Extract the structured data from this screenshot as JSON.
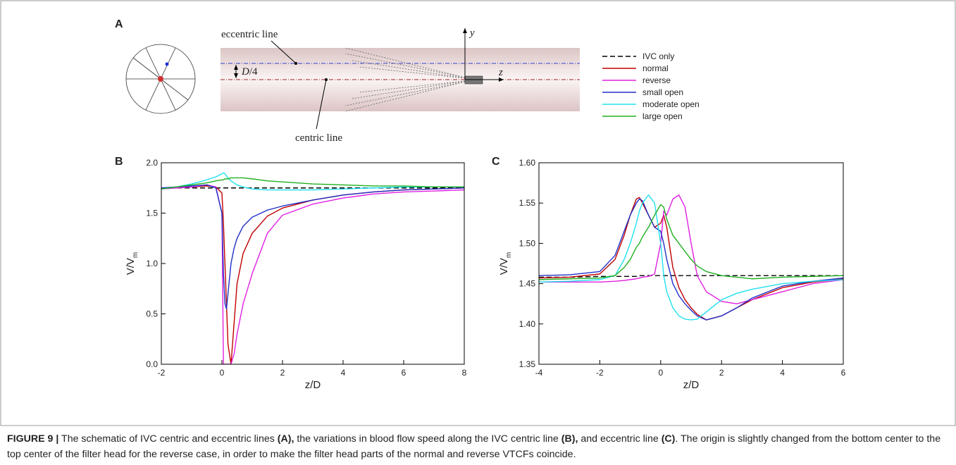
{
  "panel_a": {
    "label": "A",
    "eccentric_label": "eccentric line",
    "centric_label": "centric line",
    "offset_label": {
      "symbol": "D",
      "text": "/4"
    },
    "y_axis": "y",
    "z_axis": "z"
  },
  "chart_data": [
    {
      "type": "line",
      "panel": "B",
      "x_label": "z/D",
      "y_label": {
        "text": "V/V",
        "subscript": "m"
      },
      "xlim": [
        -2,
        8
      ],
      "ylim": [
        0,
        2
      ],
      "xticks": [
        -2,
        0,
        2,
        4,
        6,
        8
      ],
      "yticks": [
        {
          "value": 0,
          "label": "0.0"
        },
        0.5,
        {
          "value": 1,
          "label": "1.0"
        },
        1.5,
        {
          "value": 2,
          "label": "2.0"
        }
      ],
      "x": [
        -2,
        -1.5,
        -1,
        -0.5,
        -0.2,
        0,
        0.05,
        0.1,
        0.15,
        0.2,
        0.3,
        0.4,
        0.5,
        0.7,
        1,
        1.5,
        2,
        3,
        4,
        5,
        6,
        7,
        8
      ],
      "series": [
        {
          "name": "IVC only",
          "color": "#000000",
          "dash": "dashed",
          "values": [
            1.75,
            1.75,
            1.75,
            1.75,
            1.75,
            1.75,
            1.75,
            1.75,
            1.75,
            1.75,
            1.75,
            1.75,
            1.75,
            1.75,
            1.75,
            1.75,
            1.75,
            1.75,
            1.75,
            1.75,
            1.75,
            1.75,
            1.75
          ]
        },
        {
          "name": "normal",
          "color": "#c00000",
          "dash": "solid",
          "values": [
            1.75,
            1.75,
            1.76,
            1.77,
            1.76,
            1.7,
            1.4,
            1.0,
            0.6,
            0.2,
            0.0,
            0.4,
            0.8,
            1.1,
            1.3,
            1.47,
            1.55,
            1.63,
            1.68,
            1.71,
            1.73,
            1.74,
            1.75
          ]
        },
        {
          "name": "reverse",
          "color": "#e020e0",
          "dash": "solid",
          "values": [
            1.74,
            1.75,
            1.76,
            1.78,
            1.76,
            1.5,
            0.0,
            0.0,
            0.0,
            0.0,
            0.0,
            0.1,
            0.3,
            0.6,
            0.9,
            1.3,
            1.48,
            1.59,
            1.65,
            1.69,
            1.71,
            1.72,
            1.73
          ]
        },
        {
          "name": "small open",
          "color": "#2030c8",
          "dash": "solid",
          "values": [
            1.75,
            1.76,
            1.77,
            1.78,
            1.75,
            1.5,
            0.9,
            0.6,
            0.55,
            0.7,
            1.0,
            1.15,
            1.25,
            1.37,
            1.46,
            1.53,
            1.57,
            1.63,
            1.68,
            1.71,
            1.73,
            1.74,
            1.75
          ]
        },
        {
          "name": "moderate open",
          "color": "#20e0f0",
          "dash": "solid",
          "values": [
            1.74,
            1.76,
            1.79,
            1.83,
            1.86,
            1.89,
            1.9,
            1.89,
            1.87,
            1.85,
            1.82,
            1.8,
            1.78,
            1.76,
            1.74,
            1.73,
            1.73,
            1.73,
            1.74,
            1.75,
            1.76,
            1.76,
            1.76
          ]
        },
        {
          "name": "large open",
          "color": "#20b020",
          "dash": "solid",
          "values": [
            1.74,
            1.76,
            1.78,
            1.8,
            1.82,
            1.83,
            1.83,
            1.84,
            1.84,
            1.84,
            1.85,
            1.85,
            1.85,
            1.85,
            1.84,
            1.82,
            1.81,
            1.79,
            1.78,
            1.77,
            1.77,
            1.76,
            1.76
          ]
        }
      ]
    },
    {
      "type": "line",
      "panel": "C",
      "x_label": "z/D",
      "y_label": {
        "text": "V/V",
        "subscript": "m"
      },
      "xlim": [
        -4,
        6
      ],
      "ylim": [
        1.35,
        1.6
      ],
      "xticks": [
        -4,
        -2,
        0,
        2,
        4,
        6
      ],
      "yticks": [
        1.35,
        {
          "value": 1.4,
          "label": "1.40"
        },
        1.45,
        {
          "value": 1.5,
          "label": "1.50"
        },
        1.55,
        {
          "value": 1.6,
          "label": "1.60"
        }
      ],
      "x": [
        -4,
        -3,
        -2,
        -1.5,
        -1.2,
        -1,
        -0.8,
        -0.7,
        -0.6,
        -0.4,
        -0.2,
        0,
        0.1,
        0.2,
        0.4,
        0.6,
        0.8,
        1,
        1.2,
        1.5,
        2,
        2.5,
        3,
        4,
        5,
        6
      ],
      "series": [
        {
          "name": "IVC only",
          "color": "#000000",
          "dash": "dashed",
          "values": [
            1.458,
            1.458,
            1.459,
            1.459,
            1.459,
            1.459,
            1.459,
            1.46,
            1.46,
            1.46,
            1.46,
            1.46,
            1.46,
            1.46,
            1.46,
            1.46,
            1.46,
            1.46,
            1.46,
            1.46,
            1.46,
            1.46,
            1.46,
            1.46,
            1.46,
            1.46
          ]
        },
        {
          "name": "normal",
          "color": "#c00000",
          "dash": "solid",
          "values": [
            1.457,
            1.458,
            1.462,
            1.48,
            1.51,
            1.535,
            1.555,
            1.557,
            1.55,
            1.535,
            1.52,
            1.525,
            1.535,
            1.52,
            1.47,
            1.445,
            1.43,
            1.42,
            1.412,
            1.405,
            1.41,
            1.42,
            1.43,
            1.445,
            1.452,
            1.456
          ]
        },
        {
          "name": "reverse",
          "color": "#e020e0",
          "dash": "solid",
          "values": [
            1.452,
            1.452,
            1.452,
            1.453,
            1.454,
            1.455,
            1.456,
            1.457,
            1.458,
            1.459,
            1.462,
            1.5,
            1.54,
            1.535,
            1.555,
            1.56,
            1.545,
            1.5,
            1.46,
            1.44,
            1.428,
            1.425,
            1.43,
            1.44,
            1.45,
            1.455
          ]
        },
        {
          "name": "small open",
          "color": "#2030c8",
          "dash": "solid",
          "values": [
            1.46,
            1.461,
            1.465,
            1.485,
            1.515,
            1.535,
            1.55,
            1.555,
            1.553,
            1.535,
            1.52,
            1.515,
            1.5,
            1.48,
            1.45,
            1.435,
            1.425,
            1.417,
            1.41,
            1.405,
            1.41,
            1.42,
            1.432,
            1.447,
            1.453,
            1.457
          ]
        },
        {
          "name": "moderate open",
          "color": "#20e0f0",
          "dash": "solid",
          "values": [
            1.452,
            1.453,
            1.455,
            1.46,
            1.48,
            1.5,
            1.525,
            1.54,
            1.55,
            1.56,
            1.55,
            1.5,
            1.46,
            1.44,
            1.42,
            1.41,
            1.406,
            1.405,
            1.406,
            1.415,
            1.43,
            1.438,
            1.443,
            1.45,
            1.453,
            1.455
          ]
        },
        {
          "name": "large open",
          "color": "#20b020",
          "dash": "solid",
          "values": [
            1.455,
            1.456,
            1.457,
            1.46,
            1.47,
            1.48,
            1.495,
            1.5,
            1.508,
            1.52,
            1.535,
            1.548,
            1.545,
            1.53,
            1.51,
            1.5,
            1.49,
            1.48,
            1.472,
            1.465,
            1.46,
            1.458,
            1.456,
            1.458,
            1.459,
            1.46
          ]
        }
      ]
    }
  ],
  "caption": [
    {
      "text": "FIGURE 9 |",
      "bold": true
    },
    {
      "text": " The schematic of IVC centric and eccentric lines ",
      "bold": false
    },
    {
      "text": "(A),",
      "bold": true
    },
    {
      "text": " the variations in blood flow speed along the IVC centric line ",
      "bold": false
    },
    {
      "text": "(B),",
      "bold": true
    },
    {
      "text": " and eccentric line ",
      "bold": false
    },
    {
      "text": "(C)",
      "bold": true
    },
    {
      "text": ". The origin is slightly changed from the bottom center to the top center of the filter head for the reverse case, in order to make the filter head parts of the normal and reverse VTCFs coincide.",
      "bold": false
    }
  ]
}
